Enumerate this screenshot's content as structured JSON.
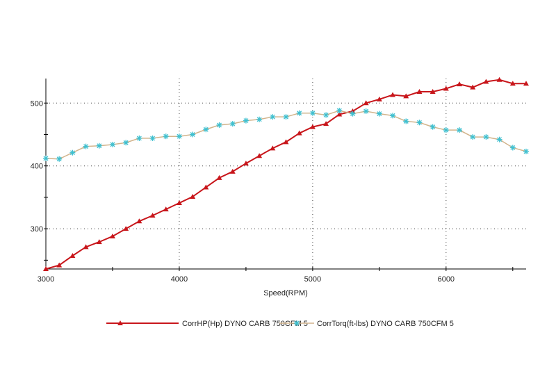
{
  "chart_data": {
    "type": "line",
    "title": "",
    "xlabel": "Speed(RPM)",
    "ylabel": "",
    "xlim": [
      3000,
      6600
    ],
    "ylim": [
      236,
      539
    ],
    "xticks": [
      "3000",
      "4000",
      "5000",
      "6000"
    ],
    "xtick_values": [
      3000,
      4000,
      5000,
      6000
    ],
    "yticks": [
      "300",
      "400",
      "500"
    ],
    "ytick_values": [
      300,
      400,
      500
    ],
    "grid": true,
    "legend_position": "bottom",
    "x": [
      3000,
      3100,
      3200,
      3300,
      3400,
      3500,
      3600,
      3700,
      3800,
      3900,
      4000,
      4100,
      4200,
      4300,
      4400,
      4500,
      4600,
      4700,
      4800,
      4900,
      5000,
      5100,
      5200,
      5300,
      5400,
      5500,
      5600,
      5700,
      5800,
      5900,
      6000,
      6100,
      6200,
      6300,
      6400,
      6500,
      6600
    ],
    "series": [
      {
        "name": "CorrHP(Hp) DYNO CARB 750CFM 5",
        "color": "#c8161b",
        "marker": "triangle",
        "values": [
          236,
          242,
          257,
          271,
          279,
          288,
          300,
          312,
          321,
          331,
          341,
          351,
          366,
          381,
          391,
          404,
          416,
          428,
          438,
          452,
          462,
          467,
          482,
          487,
          500,
          506,
          513,
          511,
          518,
          518,
          523,
          530,
          525,
          534,
          537,
          531,
          531
        ]
      },
      {
        "name": "CorrTorq(ft-lbs) DYNO CARB 750CFM 5",
        "color": "#d2b48c",
        "marker_color": "#3fc0d0",
        "marker": "star",
        "values": [
          412,
          411,
          421,
          431,
          432,
          434,
          437,
          444,
          444,
          447,
          447,
          450,
          458,
          465,
          467,
          472,
          474,
          478,
          478,
          484,
          484,
          481,
          488,
          483,
          487,
          483,
          480,
          471,
          469,
          462,
          457,
          457,
          446,
          446,
          442,
          429,
          423
        ]
      }
    ]
  }
}
